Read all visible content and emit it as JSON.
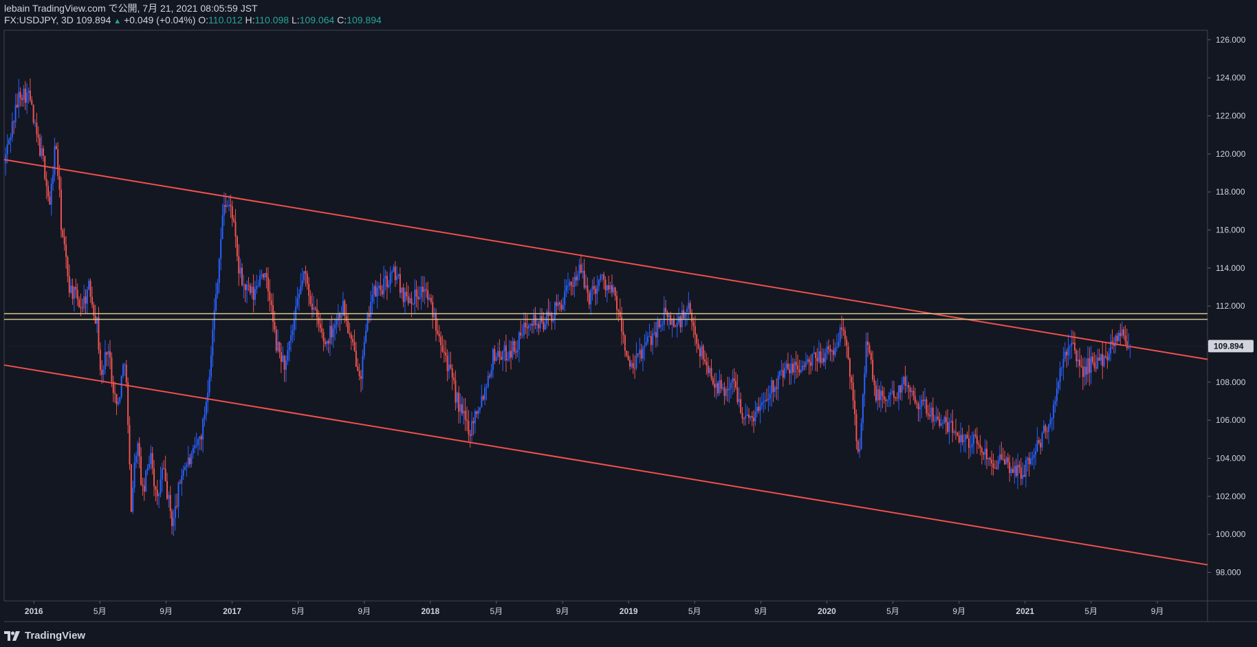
{
  "header": {
    "line1": "lebain TradingView.com で公開, 7月 21, 2021 08:05:59 JST",
    "symbol": "FX:USDJPY, 3D",
    "last": "109.894",
    "change": "+0.049 (+0.04%)",
    "o_label": "O:",
    "o_value": "110.012",
    "h_label": "H:",
    "h_value": "110.098",
    "l_label": "L:",
    "l_value": "109.064",
    "c_label": "C:",
    "c_value": "109.894"
  },
  "footer": {
    "brand": "TradingView"
  },
  "colors": {
    "background": "#131722",
    "up": "#2962ff",
    "down": "#ef5350",
    "trendline": "#f0514d",
    "horizontal": "#d6c68a",
    "axis_text": "#d1d4dc",
    "price_label_bg": "#d1d4dc"
  },
  "chart_data": {
    "type": "candlestick",
    "symbol": "FX:USDJPY",
    "interval": "3D",
    "ylim": [
      96.5,
      126.5
    ],
    "xlim": [
      2015.85,
      2021.92
    ],
    "y_ticks": [
      "126.000",
      "124.000",
      "122.000",
      "120.000",
      "118.000",
      "116.000",
      "114.000",
      "112.000",
      "110.000",
      "108.000",
      "106.000",
      "104.000",
      "102.000",
      "100.000",
      "98.000"
    ],
    "last_price": "109.894",
    "x_ticks": [
      {
        "label": "2016",
        "t": 2016.0,
        "bold": true
      },
      {
        "label": "5月",
        "t": 2016.333
      },
      {
        "label": "9月",
        "t": 2016.667
      },
      {
        "label": "2017",
        "t": 2017.0,
        "bold": true
      },
      {
        "label": "5月",
        "t": 2017.333
      },
      {
        "label": "9月",
        "t": 2017.667
      },
      {
        "label": "2018",
        "t": 2018.0,
        "bold": true
      },
      {
        "label": "5月",
        "t": 2018.333
      },
      {
        "label": "9月",
        "t": 2018.667
      },
      {
        "label": "2019",
        "t": 2019.0,
        "bold": true
      },
      {
        "label": "5月",
        "t": 2019.333
      },
      {
        "label": "9月",
        "t": 2019.667
      },
      {
        "label": "2020",
        "t": 2020.0,
        "bold": true
      },
      {
        "label": "5月",
        "t": 2020.333
      },
      {
        "label": "9月",
        "t": 2020.667
      },
      {
        "label": "2021",
        "t": 2021.0,
        "bold": true
      },
      {
        "label": "5月",
        "t": 2021.333
      },
      {
        "label": "9月",
        "t": 2021.667
      }
    ],
    "price_path": [
      [
        2015.85,
        119.5
      ],
      [
        2015.88,
        121.0
      ],
      [
        2015.93,
        123.3
      ],
      [
        2015.98,
        123.0
      ],
      [
        2016.0,
        121.5
      ],
      [
        2016.05,
        119.5
      ],
      [
        2016.08,
        117.2
      ],
      [
        2016.11,
        120.8
      ],
      [
        2016.14,
        116.0
      ],
      [
        2016.18,
        113.0
      ],
      [
        2016.24,
        112.0
      ],
      [
        2016.28,
        113.0
      ],
      [
        2016.32,
        111.0
      ],
      [
        2016.34,
        108.0
      ],
      [
        2016.37,
        110.0
      ],
      [
        2016.42,
        106.5
      ],
      [
        2016.46,
        109.5
      ],
      [
        2016.49,
        101.5
      ],
      [
        2016.52,
        105.0
      ],
      [
        2016.55,
        102.0
      ],
      [
        2016.59,
        104.5
      ],
      [
        2016.62,
        101.5
      ],
      [
        2016.65,
        103.5
      ],
      [
        2016.7,
        100.5
      ],
      [
        2016.75,
        103.5
      ],
      [
        2016.8,
        104.0
      ],
      [
        2016.85,
        105.5
      ],
      [
        2016.88,
        108.0
      ],
      [
        2016.93,
        114.0
      ],
      [
        2016.96,
        117.5
      ],
      [
        2017.0,
        117.0
      ],
      [
        2017.03,
        114.0
      ],
      [
        2017.06,
        113.0
      ],
      [
        2017.11,
        112.5
      ],
      [
        2017.15,
        114.0
      ],
      [
        2017.19,
        112.5
      ],
      [
        2017.22,
        110.0
      ],
      [
        2017.27,
        108.8
      ],
      [
        2017.32,
        111.5
      ],
      [
        2017.36,
        113.8
      ],
      [
        2017.42,
        111.5
      ],
      [
        2017.47,
        110.0
      ],
      [
        2017.51,
        111.0
      ],
      [
        2017.56,
        112.0
      ],
      [
        2017.6,
        110.0
      ],
      [
        2017.65,
        108.5
      ],
      [
        2017.7,
        112.5
      ],
      [
        2017.76,
        113.0
      ],
      [
        2017.82,
        113.8
      ],
      [
        2017.87,
        112.5
      ],
      [
        2017.92,
        112.5
      ],
      [
        2017.97,
        113.0
      ],
      [
        2018.0,
        112.0
      ],
      [
        2018.05,
        110.5
      ],
      [
        2018.11,
        108.0
      ],
      [
        2018.15,
        106.5
      ],
      [
        2018.2,
        105.5
      ],
      [
        2018.23,
        106.5
      ],
      [
        2018.27,
        107.5
      ],
      [
        2018.32,
        109.5
      ],
      [
        2018.38,
        109.5
      ],
      [
        2018.44,
        110.0
      ],
      [
        2018.5,
        111.5
      ],
      [
        2018.55,
        111.0
      ],
      [
        2018.61,
        111.5
      ],
      [
        2018.68,
        112.5
      ],
      [
        2018.75,
        114.0
      ],
      [
        2018.8,
        112.5
      ],
      [
        2018.86,
        113.5
      ],
      [
        2018.93,
        112.5
      ],
      [
        2018.98,
        110.0
      ],
      [
        2019.01,
        108.5
      ],
      [
        2019.06,
        109.5
      ],
      [
        2019.12,
        110.5
      ],
      [
        2019.18,
        111.5
      ],
      [
        2019.24,
        111.0
      ],
      [
        2019.3,
        111.8
      ],
      [
        2019.35,
        110.0
      ],
      [
        2019.41,
        108.5
      ],
      [
        2019.47,
        107.5
      ],
      [
        2019.53,
        108.0
      ],
      [
        2019.59,
        106.0
      ],
      [
        2019.65,
        106.5
      ],
      [
        2019.7,
        107.5
      ],
      [
        2019.78,
        108.5
      ],
      [
        2019.85,
        108.8
      ],
      [
        2019.92,
        109.0
      ],
      [
        2019.98,
        109.5
      ],
      [
        2020.03,
        109.5
      ],
      [
        2020.08,
        111.0
      ],
      [
        2020.13,
        107.5
      ],
      [
        2020.16,
        104.0
      ],
      [
        2020.2,
        110.5
      ],
      [
        2020.24,
        107.5
      ],
      [
        2020.29,
        107.0
      ],
      [
        2020.35,
        107.5
      ],
      [
        2020.4,
        108.0
      ],
      [
        2020.46,
        107.0
      ],
      [
        2020.52,
        106.5
      ],
      [
        2020.58,
        105.8
      ],
      [
        2020.64,
        105.5
      ],
      [
        2020.7,
        105.0
      ],
      [
        2020.76,
        104.8
      ],
      [
        2020.82,
        104.0
      ],
      [
        2020.88,
        103.8
      ],
      [
        2020.93,
        103.5
      ],
      [
        2020.98,
        103.2
      ],
      [
        2021.03,
        104.0
      ],
      [
        2021.08,
        105.0
      ],
      [
        2021.13,
        106.0
      ],
      [
        2021.18,
        108.5
      ],
      [
        2021.22,
        110.2
      ],
      [
        2021.25,
        109.5
      ],
      [
        2021.29,
        108.5
      ],
      [
        2021.33,
        109.0
      ],
      [
        2021.37,
        109.0
      ],
      [
        2021.41,
        109.5
      ],
      [
        2021.45,
        110.2
      ],
      [
        2021.48,
        110.8
      ],
      [
        2021.5,
        110.3
      ],
      [
        2021.53,
        109.894
      ]
    ],
    "trendlines": [
      {
        "name": "upper-channel",
        "from": [
          2015.85,
          119.7
        ],
        "to": [
          2021.92,
          109.2
        ]
      },
      {
        "name": "lower-channel",
        "from": [
          2015.85,
          108.9
        ],
        "to": [
          2021.92,
          98.4
        ]
      }
    ],
    "horizontal_lines": [
      111.6,
      111.3
    ]
  }
}
